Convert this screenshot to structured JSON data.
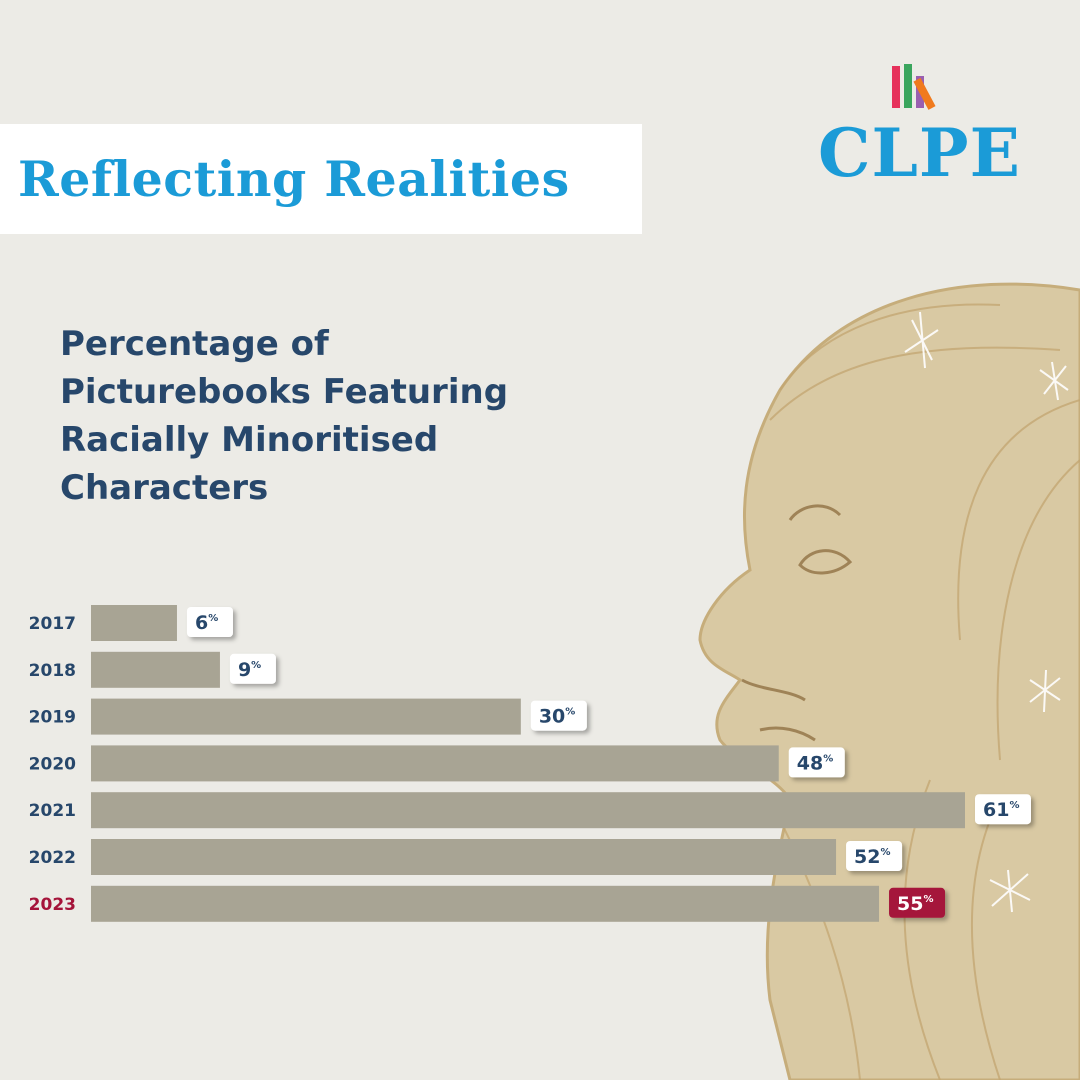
{
  "banner": {
    "title": "Reflecting Realities"
  },
  "logo": {
    "text": "CLPE",
    "stripe_colors": [
      "#e6315b",
      "#3aa55d",
      "#9a5fb0",
      "#f07a1d"
    ]
  },
  "colors": {
    "bar": "#a8a494",
    "label_normal": "#27476b",
    "label_highlight": "#a5143a",
    "brand_blue": "#1b9bd7"
  },
  "chart_data": {
    "type": "bar",
    "orientation": "horizontal",
    "title": "Percentage of Picturebooks Featuring Racially Minoritised Characters",
    "categories": [
      "2017",
      "2018",
      "2019",
      "2020",
      "2021",
      "2022",
      "2023"
    ],
    "values": [
      6,
      9,
      30,
      48,
      61,
      52,
      55
    ],
    "value_suffix": "%",
    "highlight_category": "2023",
    "xlim": [
      0,
      61
    ],
    "grid": false,
    "legend": "none"
  }
}
